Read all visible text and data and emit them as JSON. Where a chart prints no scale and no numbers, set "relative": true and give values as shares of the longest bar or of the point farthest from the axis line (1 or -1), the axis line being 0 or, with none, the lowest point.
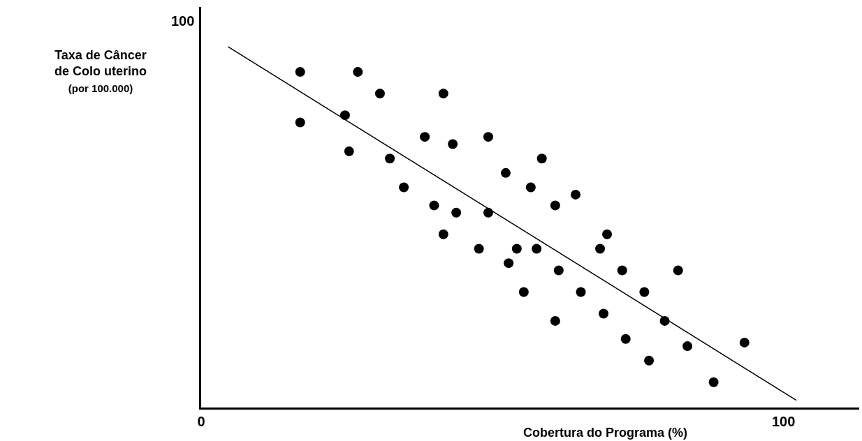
{
  "chart_data": {
    "type": "scatter",
    "relative": true,
    "xlabel": "Cobertura do Programa (%)",
    "ylabel": "Taxa de Câncer\nde Colo uterino\n(por 100.000)",
    "annotations": [
      "100"
    ],
    "xlim": [
      0,
      113
    ],
    "xticks": [
      0,
      100
    ],
    "marker": "circle",
    "series": [
      {
        "color": "#000000",
        "x": [
          17.0,
          17.0,
          26.9,
          24.7,
          25.4,
          30.7,
          32.4,
          34.8,
          38.4,
          41.6,
          43.2,
          40.0,
          43.8,
          41.6,
          49.3,
          49.3,
          47.7,
          52.3,
          52.8,
          54.2,
          55.4,
          56.6,
          57.6,
          58.5,
          60.8,
          61.4,
          60.8,
          64.3,
          65.2,
          68.5,
          69.7,
          69.1,
          72.3,
          72.9,
          76.1,
          76.9,
          79.6,
          81.9,
          83.5,
          88.0,
          93.3
        ],
        "values": [
          0.93,
          0.79,
          0.93,
          0.81,
          0.71,
          0.87,
          0.69,
          0.61,
          0.75,
          0.87,
          0.73,
          0.56,
          0.54,
          0.48,
          0.75,
          0.54,
          0.44,
          0.65,
          0.4,
          0.44,
          0.32,
          0.61,
          0.44,
          0.69,
          0.56,
          0.38,
          0.24,
          0.59,
          0.32,
          0.44,
          0.48,
          0.26,
          0.38,
          0.19,
          0.32,
          0.13,
          0.24,
          0.38,
          0.17,
          0.07,
          0.18
        ]
      },
      {
        "type": "line",
        "color": "#000000",
        "marker": "none",
        "x": [
          4.6,
          102.2
        ],
        "values": [
          1,
          0.02
        ]
      }
    ]
  }
}
